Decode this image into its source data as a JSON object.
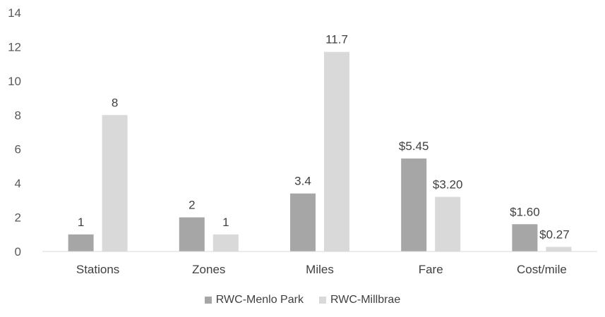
{
  "chart_data": {
    "type": "bar",
    "categories": [
      "Stations",
      "Zones",
      "Miles",
      "Fare",
      "Cost/mile"
    ],
    "series": [
      {
        "name": "RWC-Menlo Park",
        "values": [
          1,
          2,
          3.4,
          5.45,
          1.6
        ],
        "labels": [
          "1",
          "2",
          "3.4",
          "$5.45",
          "$1.60"
        ],
        "color": "#a6a6a6"
      },
      {
        "name": "RWC-Millbrae",
        "values": [
          8,
          1,
          11.7,
          3.2,
          0.27
        ],
        "labels": [
          "8",
          "1",
          "11.7",
          "$3.20",
          "$0.27"
        ],
        "color": "#d9d9d9"
      }
    ],
    "ylim": [
      0,
      14
    ],
    "yticks": [
      "0",
      "2",
      "4",
      "6",
      "8",
      "10",
      "12",
      "14"
    ],
    "legend_position": "bottom",
    "grid": false
  }
}
